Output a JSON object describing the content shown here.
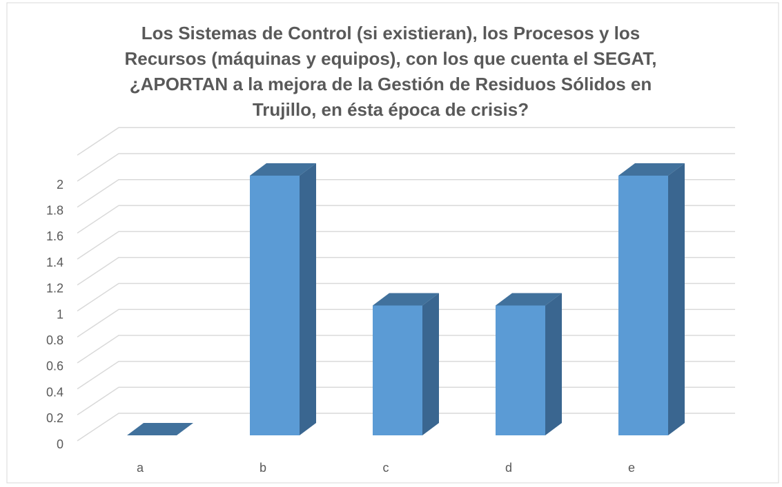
{
  "chart_data": {
    "type": "bar3d",
    "title": "Los Sistemas de Control (si existieran), los Procesos y los Recursos (máquinas y equipos), con los que cuenta el SEGAT, ¿APORTAN a la mejora de la Gestión de Residuos Sólidos en Trujillo, en ésta época de crisis?",
    "categories": [
      "a",
      "b",
      "c",
      "d",
      "e"
    ],
    "values": [
      0,
      2,
      1,
      1,
      2
    ],
    "color": "#5b9bd5",
    "ylim": [
      0,
      2.2
    ],
    "yticks": [
      0,
      0.2,
      0.4,
      0.6,
      0.8,
      1,
      1.2,
      1.4,
      1.6,
      1.8,
      2
    ],
    "grid": true
  }
}
